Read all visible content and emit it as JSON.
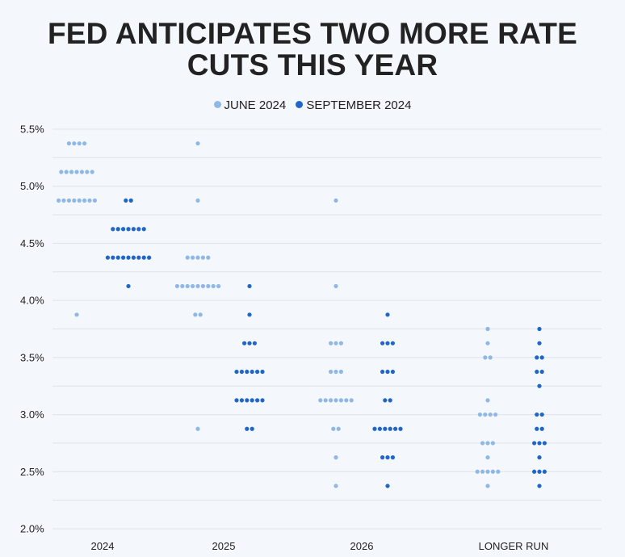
{
  "title_lines": [
    "FED ANTICIPATES TWO MORE RATE",
    "CUTS THIS YEAR"
  ],
  "colors": {
    "june": "#8fb8e6",
    "september": "#1f66c8",
    "grid": "#dde4ec"
  },
  "chart_data": {
    "type": "scatter",
    "title": "FED ANTICIPATES TWO MORE RATE CUTS THIS YEAR",
    "categories": [
      "2024",
      "2025",
      "2026",
      "LONGER RUN"
    ],
    "y_ticks": [
      "2.0%",
      "2.5%",
      "3.0%",
      "3.5%",
      "4.0%",
      "4.5%",
      "5.0%",
      "5.5%"
    ],
    "ylim": [
      2.0,
      5.5
    ],
    "grid": true,
    "legend_position": "top-center",
    "series": [
      {
        "name": "JUNE 2024",
        "color": "#8fb8e6",
        "points": [
          {
            "x": "2024",
            "y": 5.375,
            "count": 4
          },
          {
            "x": "2024",
            "y": 5.125,
            "count": 7
          },
          {
            "x": "2024",
            "y": 4.875,
            "count": 8
          },
          {
            "x": "2024",
            "y": 3.875,
            "count": 1
          },
          {
            "x": "2025",
            "y": 5.375,
            "count": 1
          },
          {
            "x": "2025",
            "y": 4.875,
            "count": 1
          },
          {
            "x": "2025",
            "y": 4.375,
            "count": 5
          },
          {
            "x": "2025",
            "y": 4.125,
            "count": 9
          },
          {
            "x": "2025",
            "y": 3.875,
            "count": 2
          },
          {
            "x": "2025",
            "y": 2.875,
            "count": 1
          },
          {
            "x": "2026",
            "y": 4.875,
            "count": 1
          },
          {
            "x": "2026",
            "y": 4.125,
            "count": 1
          },
          {
            "x": "2026",
            "y": 3.625,
            "count": 3
          },
          {
            "x": "2026",
            "y": 3.375,
            "count": 3
          },
          {
            "x": "2026",
            "y": 3.125,
            "count": 7
          },
          {
            "x": "2026",
            "y": 2.875,
            "count": 2
          },
          {
            "x": "2026",
            "y": 2.625,
            "count": 1
          },
          {
            "x": "2026",
            "y": 2.375,
            "count": 1
          },
          {
            "x": "LONGER RUN",
            "y": 3.75,
            "count": 1
          },
          {
            "x": "LONGER RUN",
            "y": 3.625,
            "count": 1
          },
          {
            "x": "LONGER RUN",
            "y": 3.5,
            "count": 2
          },
          {
            "x": "LONGER RUN",
            "y": 3.125,
            "count": 1
          },
          {
            "x": "LONGER RUN",
            "y": 3.0,
            "count": 4
          },
          {
            "x": "LONGER RUN",
            "y": 2.75,
            "count": 3
          },
          {
            "x": "LONGER RUN",
            "y": 2.625,
            "count": 1
          },
          {
            "x": "LONGER RUN",
            "y": 2.5,
            "count": 5
          },
          {
            "x": "LONGER RUN",
            "y": 2.375,
            "count": 1
          }
        ]
      },
      {
        "name": "SEPTEMBER 2024",
        "color": "#1f66c8",
        "points": [
          {
            "x": "2024",
            "y": 4.875,
            "count": 2
          },
          {
            "x": "2024",
            "y": 4.625,
            "count": 7
          },
          {
            "x": "2024",
            "y": 4.375,
            "count": 9
          },
          {
            "x": "2024",
            "y": 4.125,
            "count": 1
          },
          {
            "x": "2025",
            "y": 4.125,
            "count": 1
          },
          {
            "x": "2025",
            "y": 3.875,
            "count": 1
          },
          {
            "x": "2025",
            "y": 3.625,
            "count": 3
          },
          {
            "x": "2025",
            "y": 3.375,
            "count": 6
          },
          {
            "x": "2025",
            "y": 3.125,
            "count": 6
          },
          {
            "x": "2025",
            "y": 2.875,
            "count": 2
          },
          {
            "x": "2026",
            "y": 3.875,
            "count": 1
          },
          {
            "x": "2026",
            "y": 3.625,
            "count": 3
          },
          {
            "x": "2026",
            "y": 3.375,
            "count": 3
          },
          {
            "x": "2026",
            "y": 3.125,
            "count": 2
          },
          {
            "x": "2026",
            "y": 2.875,
            "count": 6
          },
          {
            "x": "2026",
            "y": 2.625,
            "count": 3
          },
          {
            "x": "2026",
            "y": 2.375,
            "count": 1
          },
          {
            "x": "LONGER RUN",
            "y": 3.75,
            "count": 1
          },
          {
            "x": "LONGER RUN",
            "y": 3.625,
            "count": 1
          },
          {
            "x": "LONGER RUN",
            "y": 3.5,
            "count": 2
          },
          {
            "x": "LONGER RUN",
            "y": 3.375,
            "count": 2
          },
          {
            "x": "LONGER RUN",
            "y": 3.25,
            "count": 1
          },
          {
            "x": "LONGER RUN",
            "y": 3.0,
            "count": 2
          },
          {
            "x": "LONGER RUN",
            "y": 2.875,
            "count": 2
          },
          {
            "x": "LONGER RUN",
            "y": 2.75,
            "count": 3
          },
          {
            "x": "LONGER RUN",
            "y": 2.625,
            "count": 1
          },
          {
            "x": "LONGER RUN",
            "y": 2.5,
            "count": 3
          },
          {
            "x": "LONGER RUN",
            "y": 2.375,
            "count": 1
          }
        ]
      }
    ]
  }
}
